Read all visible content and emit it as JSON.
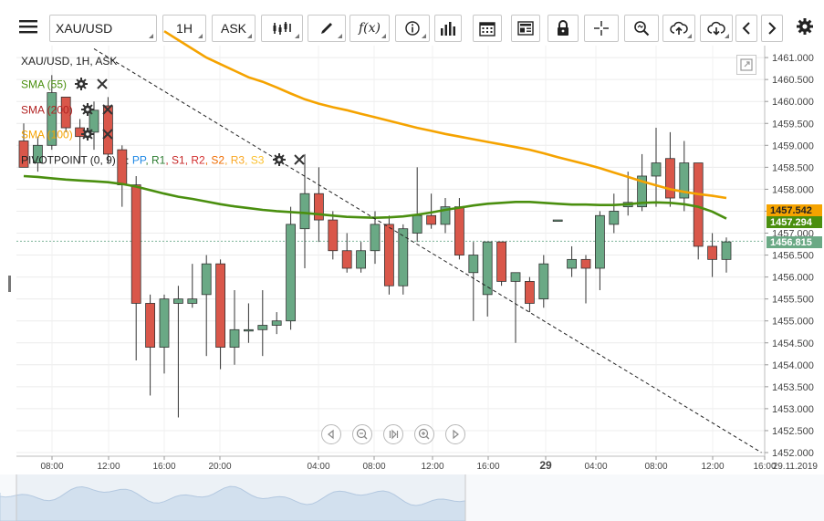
{
  "toolbar": {
    "symbol": "XAU/USD",
    "timeframe": "1H",
    "price_side": "ASK",
    "icons": [
      "menu-icon",
      "candles-icon",
      "draw-icon",
      "function-icon",
      "info-icon",
      "bars-icon",
      "calendar-icon",
      "news-icon",
      "lock-icon",
      "crosshair-icon",
      "zoom-icon",
      "upload-icon",
      "download-icon",
      "chevron-left-icon",
      "chevron-right-icon",
      "gear-icon"
    ]
  },
  "legend": {
    "instrument": "XAU/USD, 1H, ASK",
    "sma55": "SMA (55)",
    "sma200": "SMA (200)",
    "sma100": "SMA (100)",
    "pivot_name": "PIVOTPOINT (0, 9)",
    "pivot_sep": ":",
    "pivot_items": [
      {
        "label": "PP",
        "color": "#1e88e5"
      },
      {
        "label": "R1",
        "color": "#2e7d32"
      },
      {
        "label": "S1",
        "color": "#c62828"
      },
      {
        "label": "R2",
        "color": "#d32f2f"
      },
      {
        "label": "S2",
        "color": "#ef6c00"
      },
      {
        "label": "R3",
        "color": "#f9a825"
      },
      {
        "label": "S3",
        "color": "#fbc02d"
      }
    ],
    "colors": {
      "sma55": "#4a8f0f",
      "sma200": "#b22222",
      "sma100": "#f5a300"
    }
  },
  "price_tags": [
    {
      "value": "1457.542",
      "color": "#f5a300",
      "text_color": "#222222"
    },
    {
      "value": "1457.294",
      "color": "#4a8f0f",
      "text_color": "#ffffff"
    },
    {
      "value": "1456.815",
      "color": "#6aa985",
      "text_color": "#ffffff"
    }
  ],
  "chart_data": {
    "type": "candlestick",
    "ylim": [
      1452.0,
      1461.2
    ],
    "y_ticks": [
      "1452.000",
      "1452.500",
      "1453.000",
      "1453.500",
      "1454.000",
      "1454.500",
      "1455.000",
      "1455.500",
      "1456.000",
      "1456.500",
      "1457.000",
      "1457.500",
      "1458.000",
      "1458.500",
      "1459.000",
      "1459.500",
      "1460.000",
      "1460.500",
      "1461.000"
    ],
    "x_ticks": [
      "08:00",
      "12:00",
      "16:00",
      "20:00",
      "04:00",
      "08:00",
      "12:00",
      "16:00",
      "29",
      "04:00",
      "08:00",
      "12:00",
      "16:00"
    ],
    "date_label": "29.11.2019",
    "up_color": "#6aa985",
    "down_color": "#d9574a",
    "candles": [
      {
        "o": 1459.1,
        "h": 1459.5,
        "l": 1458.5,
        "c": 1458.5
      },
      {
        "o": 1458.6,
        "h": 1459.2,
        "l": 1458.4,
        "c": 1459.0
      },
      {
        "o": 1459.0,
        "h": 1460.6,
        "l": 1458.9,
        "c": 1460.2
      },
      {
        "o": 1460.1,
        "h": 1460.1,
        "l": 1459.3,
        "c": 1459.4
      },
      {
        "o": 1459.4,
        "h": 1459.6,
        "l": 1458.6,
        "c": 1459.2
      },
      {
        "o": 1459.3,
        "h": 1460.0,
        "l": 1458.9,
        "c": 1459.8
      },
      {
        "o": 1459.9,
        "h": 1460.1,
        "l": 1458.6,
        "c": 1458.8
      },
      {
        "o": 1458.9,
        "h": 1459.0,
        "l": 1457.6,
        "c": 1458.1
      },
      {
        "o": 1458.1,
        "h": 1458.3,
        "l": 1454.1,
        "c": 1455.4
      },
      {
        "o": 1455.4,
        "h": 1455.6,
        "l": 1453.3,
        "c": 1454.4
      },
      {
        "o": 1454.4,
        "h": 1455.6,
        "l": 1453.8,
        "c": 1455.5
      },
      {
        "o": 1455.4,
        "h": 1455.8,
        "l": 1452.8,
        "c": 1455.5
      },
      {
        "o": 1455.4,
        "h": 1456.3,
        "l": 1455.3,
        "c": 1455.5
      },
      {
        "o": 1455.6,
        "h": 1456.5,
        "l": 1454.2,
        "c": 1456.3
      },
      {
        "o": 1456.3,
        "h": 1456.4,
        "l": 1453.9,
        "c": 1454.4
      },
      {
        "o": 1454.4,
        "h": 1455.7,
        "l": 1454.0,
        "c": 1454.8
      },
      {
        "o": 1454.8,
        "h": 1455.4,
        "l": 1454.5,
        "c": 1454.8
      },
      {
        "o": 1454.8,
        "h": 1455.7,
        "l": 1454.2,
        "c": 1454.9
      },
      {
        "o": 1454.9,
        "h": 1455.2,
        "l": 1454.7,
        "c": 1455.0
      },
      {
        "o": 1455.0,
        "h": 1457.6,
        "l": 1454.8,
        "c": 1457.2
      },
      {
        "o": 1457.1,
        "h": 1458.8,
        "l": 1456.2,
        "c": 1457.9
      },
      {
        "o": 1457.9,
        "h": 1458.5,
        "l": 1456.8,
        "c": 1457.3
      },
      {
        "o": 1457.3,
        "h": 1457.5,
        "l": 1456.4,
        "c": 1456.6
      },
      {
        "o": 1456.6,
        "h": 1457.0,
        "l": 1456.1,
        "c": 1456.2
      },
      {
        "o": 1456.2,
        "h": 1456.8,
        "l": 1456.1,
        "c": 1456.6
      },
      {
        "o": 1456.6,
        "h": 1457.5,
        "l": 1456.3,
        "c": 1457.2
      },
      {
        "o": 1457.2,
        "h": 1457.4,
        "l": 1455.6,
        "c": 1455.8
      },
      {
        "o": 1455.8,
        "h": 1457.2,
        "l": 1455.6,
        "c": 1457.1
      },
      {
        "o": 1457.0,
        "h": 1458.5,
        "l": 1456.8,
        "c": 1457.4
      },
      {
        "o": 1457.4,
        "h": 1457.9,
        "l": 1457.1,
        "c": 1457.2
      },
      {
        "o": 1457.2,
        "h": 1457.8,
        "l": 1457.0,
        "c": 1457.6
      },
      {
        "o": 1457.6,
        "h": 1457.8,
        "l": 1456.4,
        "c": 1456.5
      },
      {
        "o": 1456.1,
        "h": 1456.8,
        "l": 1455.0,
        "c": 1456.5
      },
      {
        "o": 1455.6,
        "h": 1456.8,
        "l": 1455.1,
        "c": 1456.8
      },
      {
        "o": 1456.8,
        "h": 1456.8,
        "l": 1455.8,
        "c": 1455.9
      },
      {
        "o": 1455.9,
        "h": 1456.1,
        "l": 1454.5,
        "c": 1456.1
      },
      {
        "o": 1455.9,
        "h": 1456.0,
        "l": 1455.2,
        "c": 1455.4
      },
      {
        "o": 1455.5,
        "h": 1456.5,
        "l": 1455.3,
        "c": 1456.3
      },
      {
        "o": 1457.3,
        "h": 1457.3,
        "l": 1457.3,
        "c": 1457.3
      },
      {
        "o": 1456.2,
        "h": 1456.7,
        "l": 1456.0,
        "c": 1456.4
      },
      {
        "o": 1456.4,
        "h": 1456.5,
        "l": 1455.4,
        "c": 1456.2
      },
      {
        "o": 1456.2,
        "h": 1457.5,
        "l": 1455.7,
        "c": 1457.4
      },
      {
        "o": 1457.2,
        "h": 1457.9,
        "l": 1457.0,
        "c": 1457.5
      },
      {
        "o": 1457.6,
        "h": 1458.4,
        "l": 1457.4,
        "c": 1457.7
      },
      {
        "o": 1457.6,
        "h": 1458.8,
        "l": 1457.5,
        "c": 1458.3
      },
      {
        "o": 1458.3,
        "h": 1459.4,
        "l": 1457.6,
        "c": 1458.6
      },
      {
        "o": 1458.7,
        "h": 1459.3,
        "l": 1457.6,
        "c": 1457.8
      },
      {
        "o": 1457.8,
        "h": 1459.1,
        "l": 1457.5,
        "c": 1458.6
      },
      {
        "o": 1458.6,
        "h": 1458.6,
        "l": 1456.4,
        "c": 1456.7
      },
      {
        "o": 1456.7,
        "h": 1457.0,
        "l": 1456.0,
        "c": 1456.4
      },
      {
        "o": 1456.4,
        "h": 1456.9,
        "l": 1456.1,
        "c": 1456.8
      }
    ],
    "sma55": [
      1458.3,
      1458.28,
      1458.25,
      1458.22,
      1458.2,
      1458.18,
      1458.16,
      1458.12,
      1458.06,
      1457.98,
      1457.9,
      1457.83,
      1457.78,
      1457.72,
      1457.66,
      1457.61,
      1457.57,
      1457.53,
      1457.5,
      1457.48,
      1457.46,
      1457.43,
      1457.4,
      1457.37,
      1457.36,
      1457.35,
      1457.36,
      1457.38,
      1457.42,
      1457.47,
      1457.53,
      1457.58,
      1457.63,
      1457.67,
      1457.69,
      1457.71,
      1457.71,
      1457.69,
      1457.67,
      1457.65,
      1457.65,
      1457.64,
      1457.64,
      1457.66,
      1457.69,
      1457.7,
      1457.69,
      1457.66,
      1457.6,
      1457.49,
      1457.33
    ],
    "sma100": [
      1461.6,
      1461.4,
      1461.2,
      1461.0,
      1460.85,
      1460.7,
      1460.55,
      1460.45,
      1460.32,
      1460.18,
      1460.05,
      1459.95,
      1459.87,
      1459.8,
      1459.72,
      1459.64,
      1459.56,
      1459.48,
      1459.4,
      1459.33,
      1459.26,
      1459.2,
      1459.14,
      1459.08,
      1459.02,
      1458.96,
      1458.9,
      1458.82,
      1458.73,
      1458.65,
      1458.57,
      1458.48,
      1458.38,
      1458.28,
      1458.18,
      1458.09,
      1458.0,
      1457.94,
      1457.89,
      1457.85,
      1457.8
    ],
    "sma100_start": 10,
    "trendline": {
      "from_index": 5,
      "from_value": 1461.2,
      "to_index": 52.5,
      "to_value": 1452.0
    }
  }
}
